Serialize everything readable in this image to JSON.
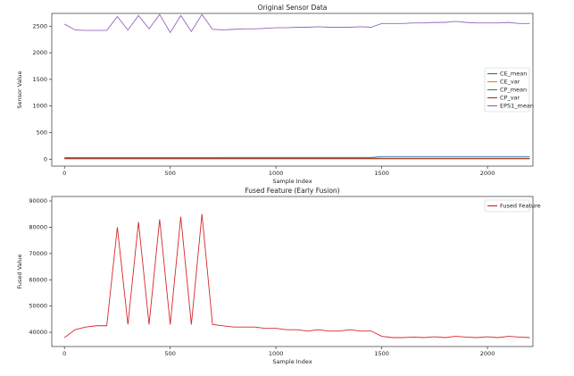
{
  "chart_data": [
    {
      "type": "line",
      "title": "Original Sensor Data",
      "xlabel": "Sample Index",
      "ylabel": "Sensor Value",
      "x": [
        0,
        50,
        100,
        150,
        200,
        250,
        300,
        350,
        400,
        450,
        500,
        550,
        600,
        650,
        700,
        750,
        800,
        850,
        900,
        950,
        1000,
        1050,
        1100,
        1150,
        1200,
        1250,
        1300,
        1350,
        1400,
        1450,
        1500,
        1550,
        1600,
        1650,
        1700,
        1750,
        1800,
        1850,
        1900,
        1950,
        2000,
        2050,
        2100,
        2150,
        2200
      ],
      "xlim": [
        -60,
        2215
      ],
      "xticks": [
        0,
        500,
        1000,
        1500,
        2000
      ],
      "ylim": [
        -130,
        2740
      ],
      "yticks": [
        0,
        500,
        1000,
        1500,
        2000,
        2500
      ],
      "legend": "center right",
      "series": [
        {
          "name": "CE_mean",
          "color": "#1f77b4",
          "values": [
            30,
            30,
            30,
            30,
            30,
            30,
            30,
            30,
            30,
            30,
            30,
            30,
            30,
            30,
            30,
            32,
            32,
            32,
            32,
            32,
            33,
            33,
            33,
            33,
            33,
            33,
            33,
            33,
            33,
            33,
            50,
            50,
            50,
            50,
            50,
            50,
            50,
            50,
            50,
            50,
            50,
            50,
            50,
            50,
            50
          ]
        },
        {
          "name": "CE_var",
          "color": "#ff7f0e",
          "values": [
            5,
            5,
            5,
            5,
            5,
            5,
            5,
            5,
            5,
            5,
            5,
            5,
            5,
            5,
            5,
            5,
            5,
            5,
            5,
            5,
            5,
            5,
            5,
            5,
            5,
            5,
            5,
            5,
            5,
            5,
            5,
            5,
            5,
            5,
            5,
            5,
            5,
            5,
            5,
            5,
            5,
            5,
            5,
            5,
            5
          ]
        },
        {
          "name": "CP_mean",
          "color": "#2ca02c",
          "values": [
            20,
            20,
            20,
            20,
            20,
            20,
            20,
            20,
            20,
            20,
            20,
            20,
            20,
            20,
            20,
            20,
            20,
            20,
            20,
            20,
            20,
            20,
            20,
            20,
            20,
            20,
            20,
            20,
            20,
            20,
            18,
            18,
            18,
            18,
            18,
            18,
            18,
            18,
            18,
            18,
            18,
            18,
            18,
            18,
            18
          ]
        },
        {
          "name": "CP_var",
          "color": "#d62728",
          "values": [
            10,
            10,
            10,
            10,
            10,
            10,
            10,
            10,
            10,
            10,
            10,
            10,
            10,
            10,
            10,
            10,
            10,
            10,
            10,
            10,
            10,
            10,
            10,
            10,
            10,
            10,
            10,
            10,
            10,
            10,
            10,
            10,
            10,
            10,
            10,
            10,
            10,
            10,
            10,
            10,
            10,
            10,
            10,
            10,
            10
          ]
        },
        {
          "name": "EPS1_mean",
          "color": "#9467bd",
          "values": [
            2540,
            2430,
            2420,
            2420,
            2420,
            2680,
            2430,
            2700,
            2450,
            2720,
            2380,
            2700,
            2400,
            2720,
            2440,
            2430,
            2440,
            2450,
            2450,
            2460,
            2470,
            2470,
            2480,
            2480,
            2490,
            2480,
            2480,
            2480,
            2490,
            2480,
            2550,
            2550,
            2550,
            2560,
            2560,
            2570,
            2570,
            2590,
            2570,
            2560,
            2560,
            2560,
            2570,
            2550,
            2550
          ]
        }
      ]
    },
    {
      "type": "line",
      "title": "Fused Feature (Early Fusion)",
      "xlabel": "Sample Index",
      "ylabel": "Fused Value",
      "x": [
        0,
        50,
        100,
        150,
        200,
        250,
        300,
        350,
        400,
        450,
        500,
        550,
        600,
        650,
        700,
        750,
        800,
        850,
        900,
        950,
        1000,
        1050,
        1100,
        1150,
        1200,
        1250,
        1300,
        1350,
        1400,
        1450,
        1500,
        1550,
        1600,
        1650,
        1700,
        1750,
        1800,
        1850,
        1900,
        1950,
        2000,
        2050,
        2100,
        2150,
        2200
      ],
      "xlim": [
        -60,
        2215
      ],
      "xticks": [
        0,
        500,
        1000,
        1500,
        2000
      ],
      "ylim": [
        34600,
        91700
      ],
      "yticks": [
        40000,
        50000,
        60000,
        70000,
        80000,
        90000
      ],
      "legend": "upper right",
      "series": [
        {
          "name": "Fused Feature",
          "color": "#d62728",
          "values": [
            38000,
            41000,
            42000,
            42500,
            42500,
            80000,
            43000,
            82000,
            43000,
            83000,
            43000,
            84000,
            43000,
            85000,
            43000,
            42500,
            42000,
            42000,
            42000,
            41500,
            41500,
            41000,
            41000,
            40500,
            41000,
            40500,
            40500,
            41000,
            40500,
            40500,
            38500,
            38000,
            38000,
            38200,
            38000,
            38300,
            38000,
            38500,
            38200,
            38000,
            38300,
            38000,
            38500,
            38200,
            38000
          ]
        }
      ]
    }
  ]
}
